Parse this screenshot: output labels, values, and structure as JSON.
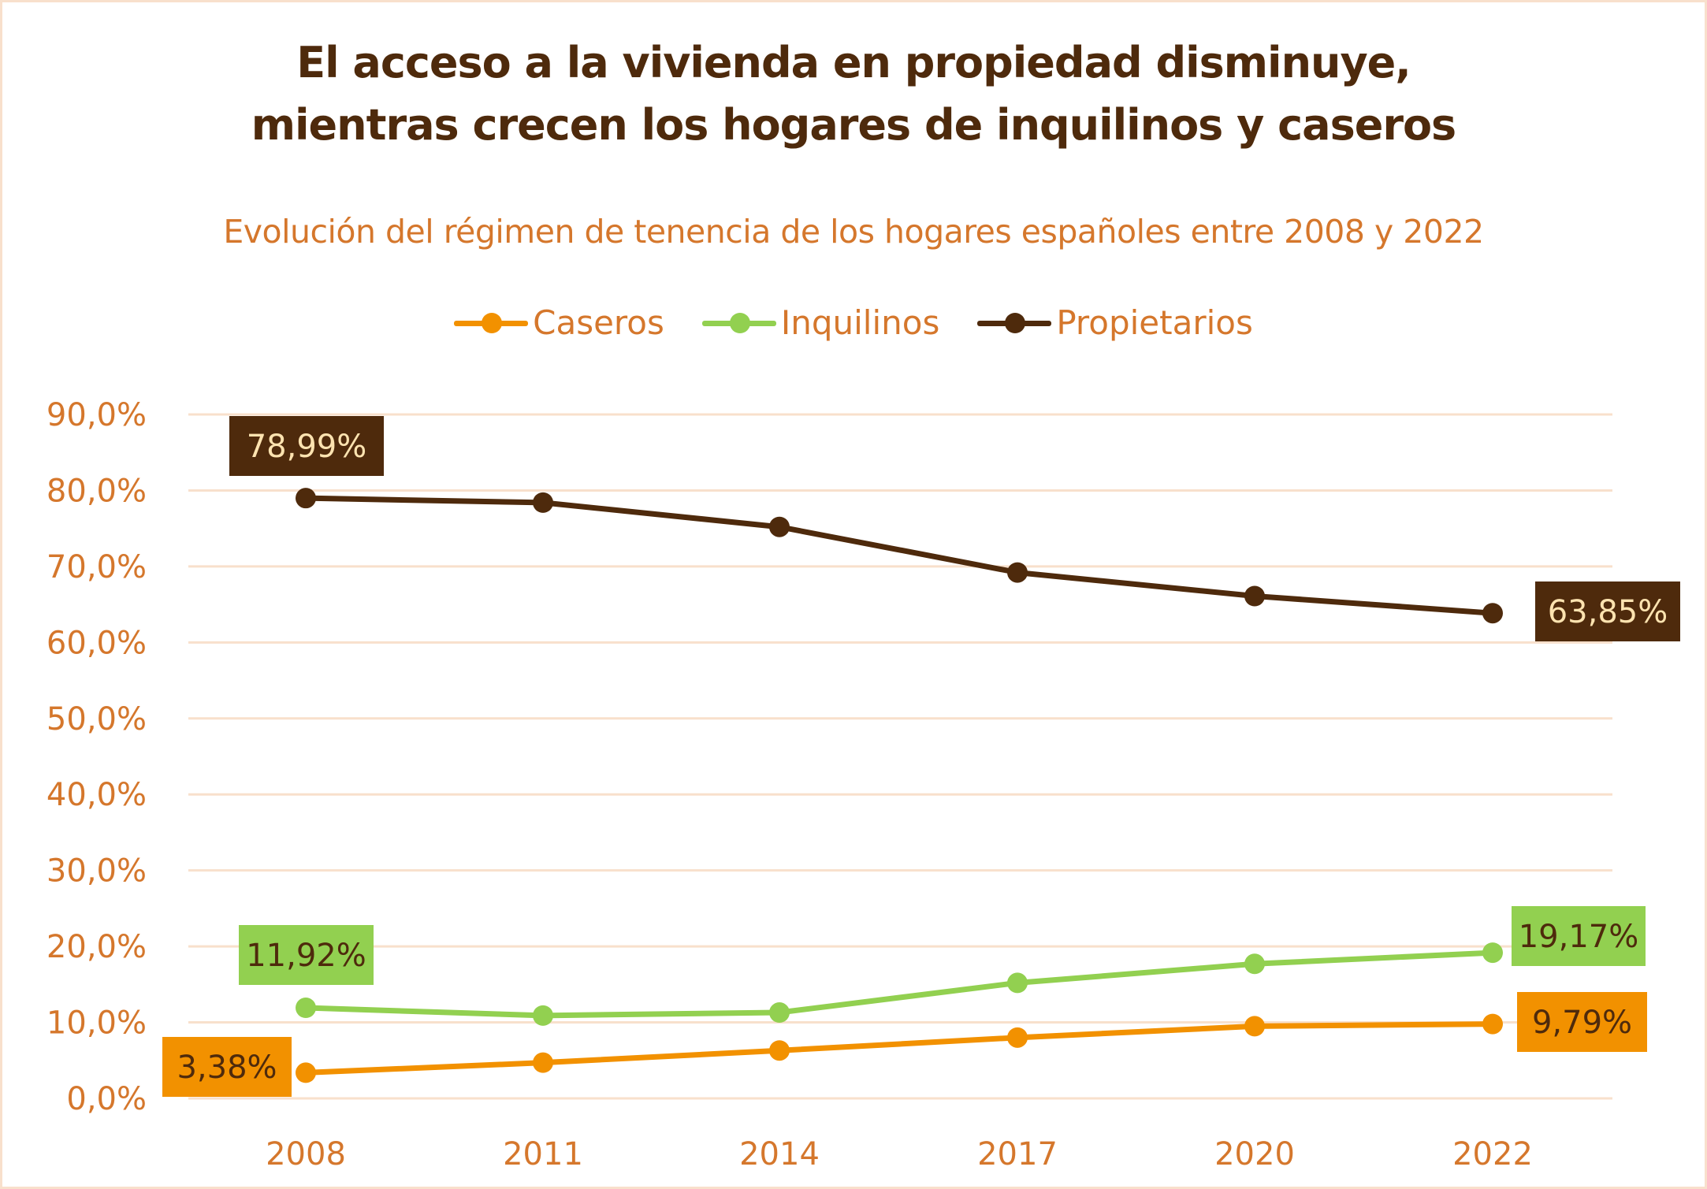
{
  "header": {
    "title_line1": "El acceso a la vivienda en propiedad disminuye,",
    "title_line2": "mientras crecen los hogares de inquilinos y caseros",
    "subtitle": "Evolución del régimen de tenencia de los hogares españoles entre 2008 y 2022"
  },
  "colors": {
    "caseros": "#f29100",
    "inquilinos": "#92d050",
    "propietarios": "#4e2a0c",
    "axis_text": "#d5772c",
    "grid": "#f8e0cc",
    "label_text_dark": "#4e2a0c",
    "label_text_light": "#fde3b0"
  },
  "chart_data": {
    "type": "line",
    "title": "El acceso a la vivienda en propiedad disminuye, mientras crecen los hogares de inquilinos y caseros",
    "subtitle": "Evolución del régimen de tenencia de los hogares españoles entre 2008 y 2022",
    "xlabel": "",
    "ylabel": "",
    "x": [
      "2008",
      "2011",
      "2014",
      "2017",
      "2020",
      "2022"
    ],
    "ylim": [
      0,
      90
    ],
    "yticks": [
      "0,0%",
      "10,0%",
      "20,0%",
      "30,0%",
      "40,0%",
      "50,0%",
      "60,0%",
      "70,0%",
      "80,0%",
      "90,0%"
    ],
    "grid": true,
    "legend_position": "top-center",
    "series": [
      {
        "name": "Caseros",
        "key": "caseros",
        "values": [
          3.38,
          4.7,
          6.3,
          8.0,
          9.5,
          9.79
        ],
        "labels": {
          "start": "3,38%",
          "end": "9,79%"
        }
      },
      {
        "name": "Inquilinos",
        "key": "inquilinos",
        "values": [
          11.92,
          10.9,
          11.3,
          15.2,
          17.7,
          19.17
        ],
        "labels": {
          "start": "11,92%",
          "end": "19,17%"
        }
      },
      {
        "name": "Propietarios",
        "key": "propietarios",
        "values": [
          78.99,
          78.4,
          75.2,
          69.2,
          66.1,
          63.85
        ],
        "labels": {
          "start": "78,99%",
          "end": "63,85%"
        }
      }
    ]
  }
}
